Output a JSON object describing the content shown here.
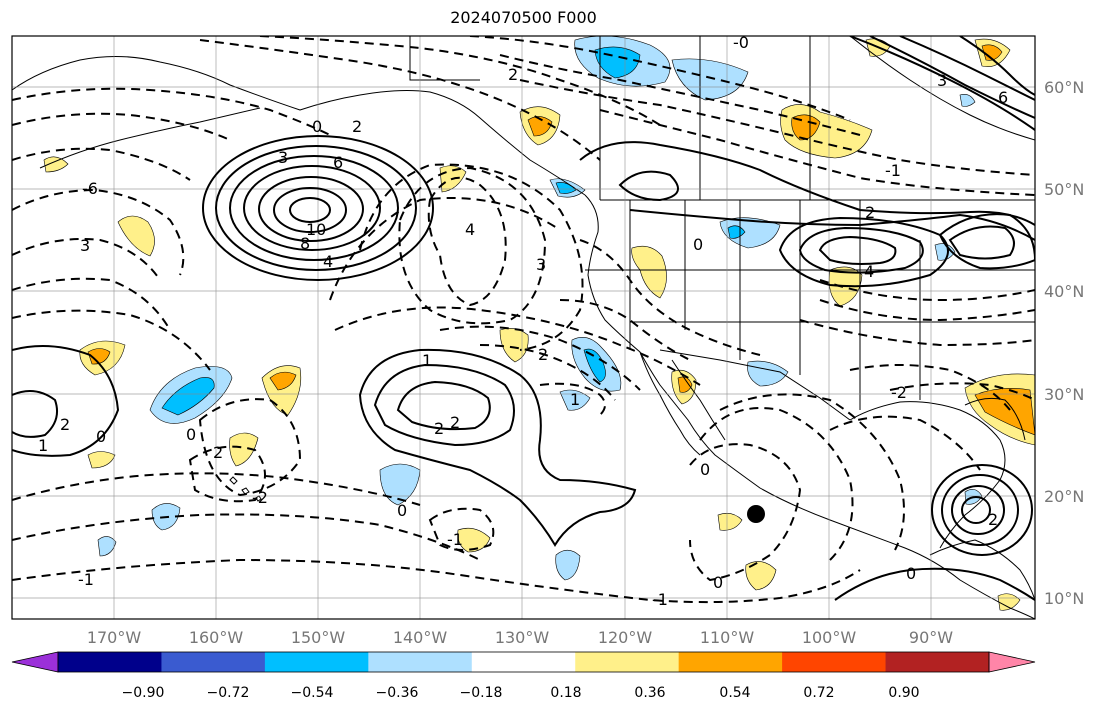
{
  "title": "2024070500 F000",
  "map": {
    "lon_labels": [
      "170°W",
      "160°W",
      "150°W",
      "140°W",
      "130°W",
      "120°W",
      "110°W",
      "100°W",
      "90°W"
    ],
    "lat_labels": [
      "60°N",
      "50°N",
      "40°N",
      "30°N",
      "20°N",
      "10°N"
    ],
    "contour_labels": [
      "0",
      "2",
      "3",
      "6",
      "10",
      "8",
      "4",
      "4",
      "3",
      "-6",
      "3",
      "2",
      "0",
      "0",
      "1",
      "2",
      "-2",
      "2",
      "0",
      "-1",
      "-1",
      "0",
      "0",
      "2",
      "2",
      "1",
      "3",
      "6",
      "2",
      "4",
      "-0",
      "-1",
      "0",
      "-1",
      "2",
      "2",
      "-2",
      "0",
      "1"
    ],
    "marker": "storm-center-dot"
  },
  "colorbar": {
    "tick_labels": [
      "−0.90",
      "−0.72",
      "−0.54",
      "−0.36",
      "−0.18",
      "0.18",
      "0.36",
      "0.54",
      "0.72",
      "0.90"
    ],
    "bins": [
      {
        "color": "#9b30d9"
      },
      {
        "color": "#00008b"
      },
      {
        "color": "#3a5bd0"
      },
      {
        "color": "#00bfff"
      },
      {
        "color": "#aee0ff"
      },
      {
        "color": "#ffffff"
      },
      {
        "color": "#fff08a"
      },
      {
        "color": "#ffa500"
      },
      {
        "color": "#ff4500"
      },
      {
        "color": "#b22222"
      },
      {
        "color": "#ff85a8"
      }
    ]
  }
}
